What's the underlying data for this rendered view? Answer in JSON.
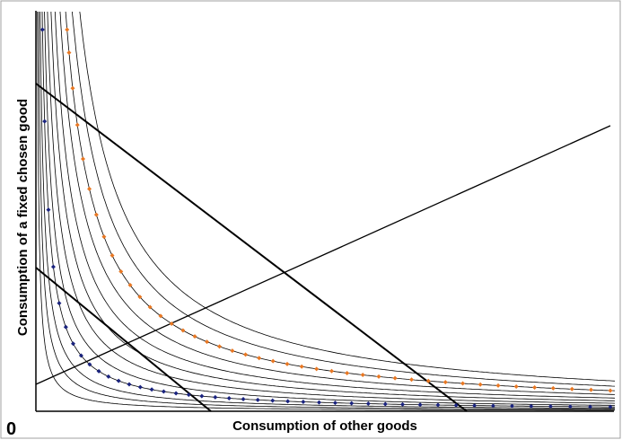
{
  "axes": {
    "xlabel": "Consumption of other goods",
    "ylabel": "Consumption of a fixed chosen good",
    "origin_label": "0"
  },
  "chart_data": {
    "type": "line",
    "title": "",
    "xlabel": "Consumption of other goods",
    "ylabel": "Consumption of a fixed chosen good",
    "grid": false,
    "indifference_curve_levels": [
      0.3,
      0.55,
      0.85,
      1.25,
      1.7,
      2.3,
      3.0,
      3.8,
      4.8,
      5.9,
      7.2,
      8.7
    ],
    "budget_lines": [
      {
        "x_intercept": 9.6,
        "y_intercept": 7.3
      },
      {
        "x_intercept": 3.9,
        "y_intercept": 3.2
      }
    ],
    "expansion_path": {
      "slope": 0.45
    },
    "dotted_curves": [
      {
        "color": "#e87722",
        "level": 5.9
      },
      {
        "color": "#1a237e",
        "level": 1.25
      }
    ]
  },
  "colors": {
    "axis": "#000000",
    "curve": "#000000",
    "border": "#a0a0a0",
    "orange_dots": "#e87722",
    "blue_dots": "#1a237e"
  }
}
